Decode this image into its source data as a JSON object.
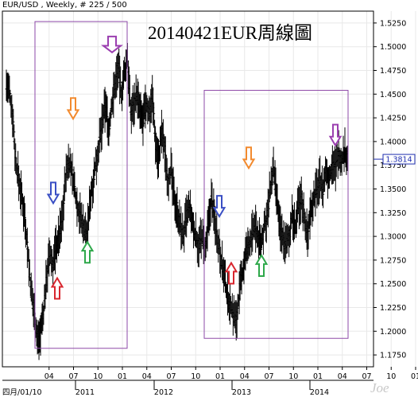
{
  "header": {
    "text": "EUR/USD , Weekly, # 225 / 500"
  },
  "title": "20140421EUR周線圖",
  "signature": "Joe",
  "chart_data": {
    "type": "candlestick",
    "instrument": "EUR/USD",
    "timeframe": "Weekly",
    "title": "20140421EUR周線圖",
    "ylim": [
      1.1625,
      1.5375
    ],
    "y_ticks": [
      "1.5250",
      "1.5000",
      "1.4750",
      "1.4500",
      "1.4250",
      "1.4000",
      "1.3750",
      "1.3500",
      "1.3250",
      "1.3000",
      "1.2750",
      "1.2500",
      "1.2250",
      "1.2000",
      "1.1750"
    ],
    "month_ticks": [
      "04",
      "07",
      "10",
      "01",
      "04",
      "07",
      "10",
      "01",
      "04",
      "07",
      "10",
      "01",
      "04",
      "07",
      "10",
      "01",
      "04",
      "07"
    ],
    "year_labels": [
      {
        "label": "四月/01/10",
        "date": "2010-04-01"
      },
      {
        "label": "2011",
        "date": "2011-01"
      },
      {
        "label": "2012",
        "date": "2012-01"
      },
      {
        "label": "2013",
        "date": "2013-01"
      },
      {
        "label": "2014",
        "date": "2014-01"
      }
    ],
    "last_price": "1.3814",
    "series": [
      {
        "values": [
          1.45,
          1.43,
          1.38,
          1.36,
          1.34,
          1.32,
          1.28,
          1.24,
          1.22,
          1.19,
          1.2,
          1.22,
          1.26,
          1.28,
          1.27,
          1.29,
          1.3,
          1.32,
          1.36,
          1.38,
          1.37,
          1.35,
          1.33,
          1.32,
          1.31,
          1.3,
          1.34,
          1.36,
          1.38,
          1.4,
          1.42,
          1.44,
          1.41,
          1.44,
          1.46,
          1.48,
          1.45,
          1.47,
          1.49,
          1.43,
          1.44,
          1.45,
          1.43,
          1.42,
          1.44,
          1.43,
          1.45,
          1.4,
          1.38,
          1.41,
          1.39,
          1.36,
          1.37,
          1.34,
          1.33,
          1.31,
          1.3,
          1.32,
          1.33,
          1.31,
          1.3,
          1.29,
          1.3,
          1.28,
          1.31,
          1.34,
          1.32,
          1.3,
          1.28,
          1.26,
          1.24,
          1.23,
          1.22,
          1.21,
          1.24,
          1.26,
          1.28,
          1.29,
          1.3,
          1.31,
          1.3,
          1.29,
          1.31,
          1.32,
          1.35,
          1.37,
          1.34,
          1.31,
          1.3,
          1.29,
          1.3,
          1.32,
          1.31,
          1.33,
          1.34,
          1.32,
          1.3,
          1.33,
          1.34,
          1.35,
          1.36,
          1.35,
          1.37,
          1.36,
          1.38,
          1.37,
          1.39,
          1.38,
          1.39,
          1.38
        ]
      }
    ],
    "annotation_boxes": [
      {
        "from": "2010-05",
        "to": "2011-07",
        "price_high": 1.5265,
        "price_low": 1.182
      },
      {
        "from": "2012-05",
        "to": "2014-08",
        "price_high": 1.454,
        "price_low": 1.1925
      }
    ],
    "annotations": [
      {
        "date": "2011-05",
        "price": 1.494,
        "direction": "down",
        "color": "#9b3fb0"
      },
      {
        "date": "2010-11",
        "price": 1.424,
        "direction": "down",
        "color": "#f28a2e"
      },
      {
        "date": "2010-09",
        "price": 1.335,
        "direction": "down",
        "color": "#3a4fc4"
      },
      {
        "date": "2010-09",
        "price": 1.256,
        "direction": "up",
        "color": "#d8262e"
      },
      {
        "date": "2011-01",
        "price": 1.294,
        "direction": "up",
        "color": "#2ea84a"
      },
      {
        "date": "2014-04",
        "price": 1.396,
        "direction": "down",
        "color": "#9b3fb0"
      },
      {
        "date": "2013-02",
        "price": 1.372,
        "direction": "down",
        "color": "#f28a2e"
      },
      {
        "date": "2012-09",
        "price": 1.321,
        "direction": "down",
        "color": "#3a4fc4"
      },
      {
        "date": "2012-11",
        "price": 1.272,
        "direction": "up",
        "color": "#d8262e"
      },
      {
        "date": "2013-04",
        "price": 1.28,
        "direction": "up",
        "color": "#2ea84a"
      }
    ],
    "colors": {
      "candle": "#000000",
      "box": "#8e4aa8",
      "grid": "#e8e8e8",
      "price_label": "#1f2fb0"
    },
    "grid": true
  }
}
